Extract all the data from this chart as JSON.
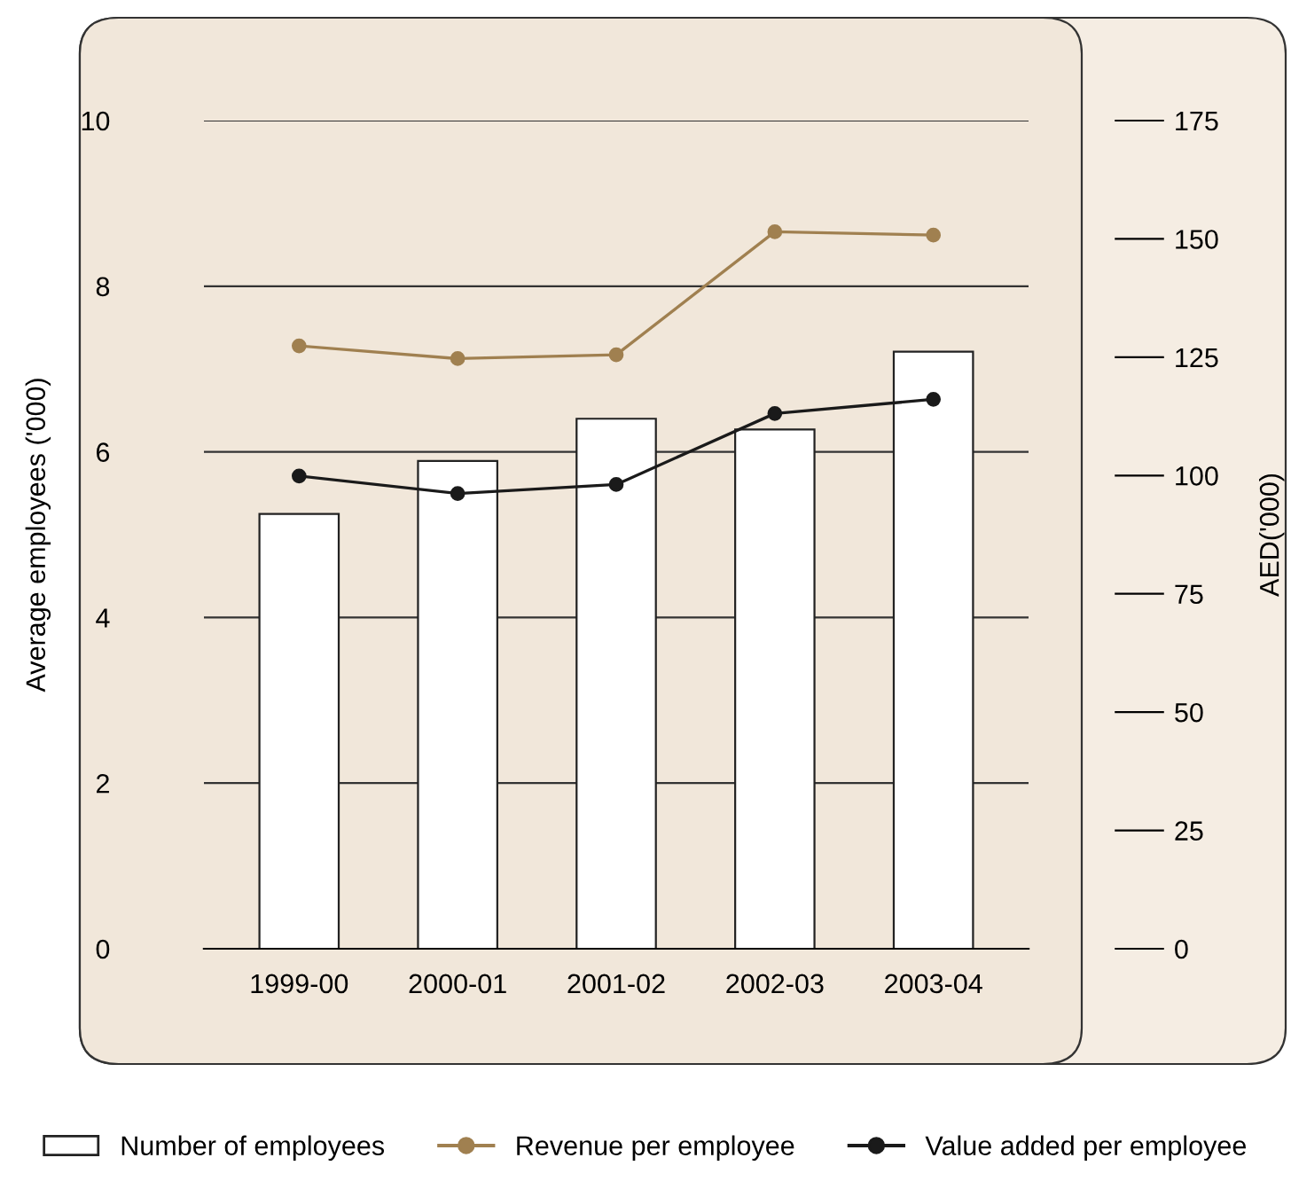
{
  "chart_data": {
    "type": "bar",
    "categories": [
      "1999-00",
      "2000-01",
      "2001-02",
      "2002-03",
      "2003-04"
    ],
    "series": [
      {
        "name": "Number of employees",
        "color": "#ffffff",
        "values": [
          5.25,
          5.89,
          6.4,
          6.27,
          7.21
        ]
      },
      {
        "name": "Revenue per employee",
        "type": "line",
        "axis": "y2",
        "color": "#a08050",
        "values": [
          127.4,
          124.7,
          125.5,
          151.5,
          150.8
        ]
      },
      {
        "name": "Value added per employee",
        "type": "line",
        "axis": "y2",
        "color": "#1a1a1a",
        "values": [
          99.9,
          96.2,
          98.1,
          113.1,
          116.1
        ]
      }
    ],
    "ylabel": "Average employees ('000)",
    "y2label": "AED('000)",
    "ylim": [
      0,
      10
    ],
    "yticks": [
      0,
      2,
      4,
      6,
      8,
      10
    ],
    "y2lim": [
      0,
      175
    ],
    "y2ticks": [
      0,
      25,
      50,
      75,
      100,
      125,
      150,
      175
    ],
    "grid": "y",
    "legend": "bottom",
    "marker": "circle",
    "line_style": "solid"
  }
}
